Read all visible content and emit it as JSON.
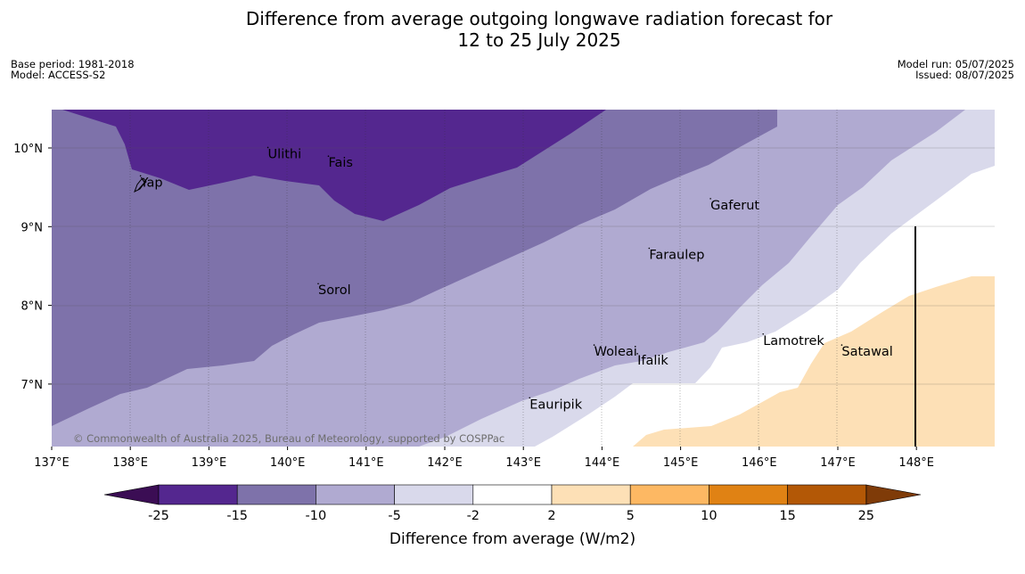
{
  "title_line1": "Difference from average outgoing longwave radiation forecast for",
  "title_line2": "12 to 25 July 2025",
  "meta_left": {
    "base_period": "Base period: 1981-2018",
    "model": "Model: ACCESS-S2"
  },
  "meta_right": {
    "model_run": "Model run: 05/07/2025",
    "issued": "Issued: 08/07/2025"
  },
  "copyright": "© Commonwealth of Australia 2025, Bureau of Meteorology, supported by COSPPac",
  "map": {
    "lon_ticks": [
      "137°E",
      "138°E",
      "139°E",
      "140°E",
      "141°E",
      "142°E",
      "143°E",
      "144°E",
      "145°E",
      "146°E",
      "147°E",
      "148°E"
    ],
    "lat_ticks": [
      "10°N",
      "9°N",
      "8°N",
      "7°N"
    ],
    "places": [
      {
        "name": "Ulithi",
        "lon": 139.75,
        "lat": 9.87
      },
      {
        "name": "Fais",
        "lon": 140.52,
        "lat": 9.76
      },
      {
        "name": "Yap",
        "lon": 138.13,
        "lat": 9.51
      },
      {
        "name": "Gaferut",
        "lon": 145.38,
        "lat": 9.22
      },
      {
        "name": "Faraulep",
        "lon": 144.6,
        "lat": 8.59
      },
      {
        "name": "Sorol",
        "lon": 140.39,
        "lat": 8.14
      },
      {
        "name": "Lamotrek",
        "lon": 146.05,
        "lat": 7.5
      },
      {
        "name": "Woleai",
        "lon": 143.9,
        "lat": 7.36
      },
      {
        "name": "Ifalik",
        "lon": 144.45,
        "lat": 7.25
      },
      {
        "name": "Satawal",
        "lon": 147.05,
        "lat": 7.36
      },
      {
        "name": "Eauripik",
        "lon": 143.08,
        "lat": 6.69
      }
    ]
  },
  "colorbar": {
    "label": "Difference from average (W/m2)",
    "ticks": [
      "-25",
      "-15",
      "-10",
      "-5",
      "-2",
      "2",
      "5",
      "10",
      "15",
      "25"
    ],
    "colors": {
      "below": "#3b0d54",
      "bins": [
        "#54278f",
        "#7e72aa",
        "#b0aad1",
        "#d9d9eb",
        "#ffffff",
        "#fde0b6",
        "#fdb863",
        "#e08214",
        "#b35806"
      ],
      "above": "#7f3b08"
    }
  }
}
